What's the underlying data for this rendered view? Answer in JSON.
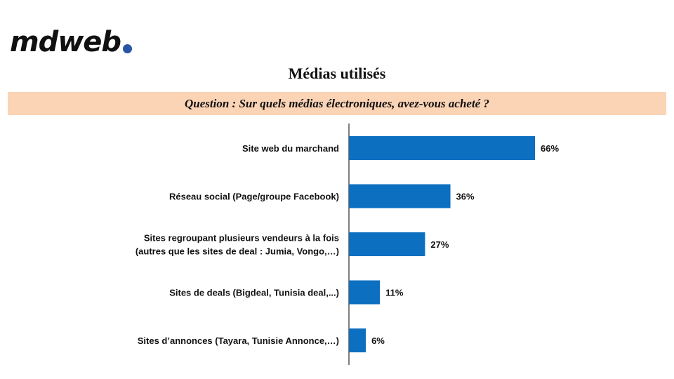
{
  "logo": {
    "text": "mdweb",
    "dot_color": "#2a55a5"
  },
  "title": "Médias utilisés",
  "question": "Question : Sur quels médias électroniques, avez-vous acheté ?",
  "colors": {
    "bar": "#0c6fc0",
    "banner": "#fbd3b5",
    "axis": "#000000"
  },
  "chart_data": {
    "type": "bar",
    "orientation": "horizontal",
    "categories": [
      [
        "Site web du marchand"
      ],
      [
        "Réseau social (Page/groupe Facebook)"
      ],
      [
        "Sites regroupant plusieurs vendeurs à la fois",
        "(autres que les sites de deal : Jumia, Vongo,…)"
      ],
      [
        "Sites de deals (Bigdeal, Tunisia deal,...)"
      ],
      [
        "Sites d’annonces (Tayara, Tunisie Annonce,…)"
      ]
    ],
    "values": [
      66,
      36,
      27,
      11,
      6
    ],
    "value_labels": [
      "66%",
      "36%",
      "27%",
      "11%",
      "6%"
    ],
    "unit": "%",
    "xlim": [
      0,
      100
    ],
    "grid": false,
    "legend": "none"
  }
}
